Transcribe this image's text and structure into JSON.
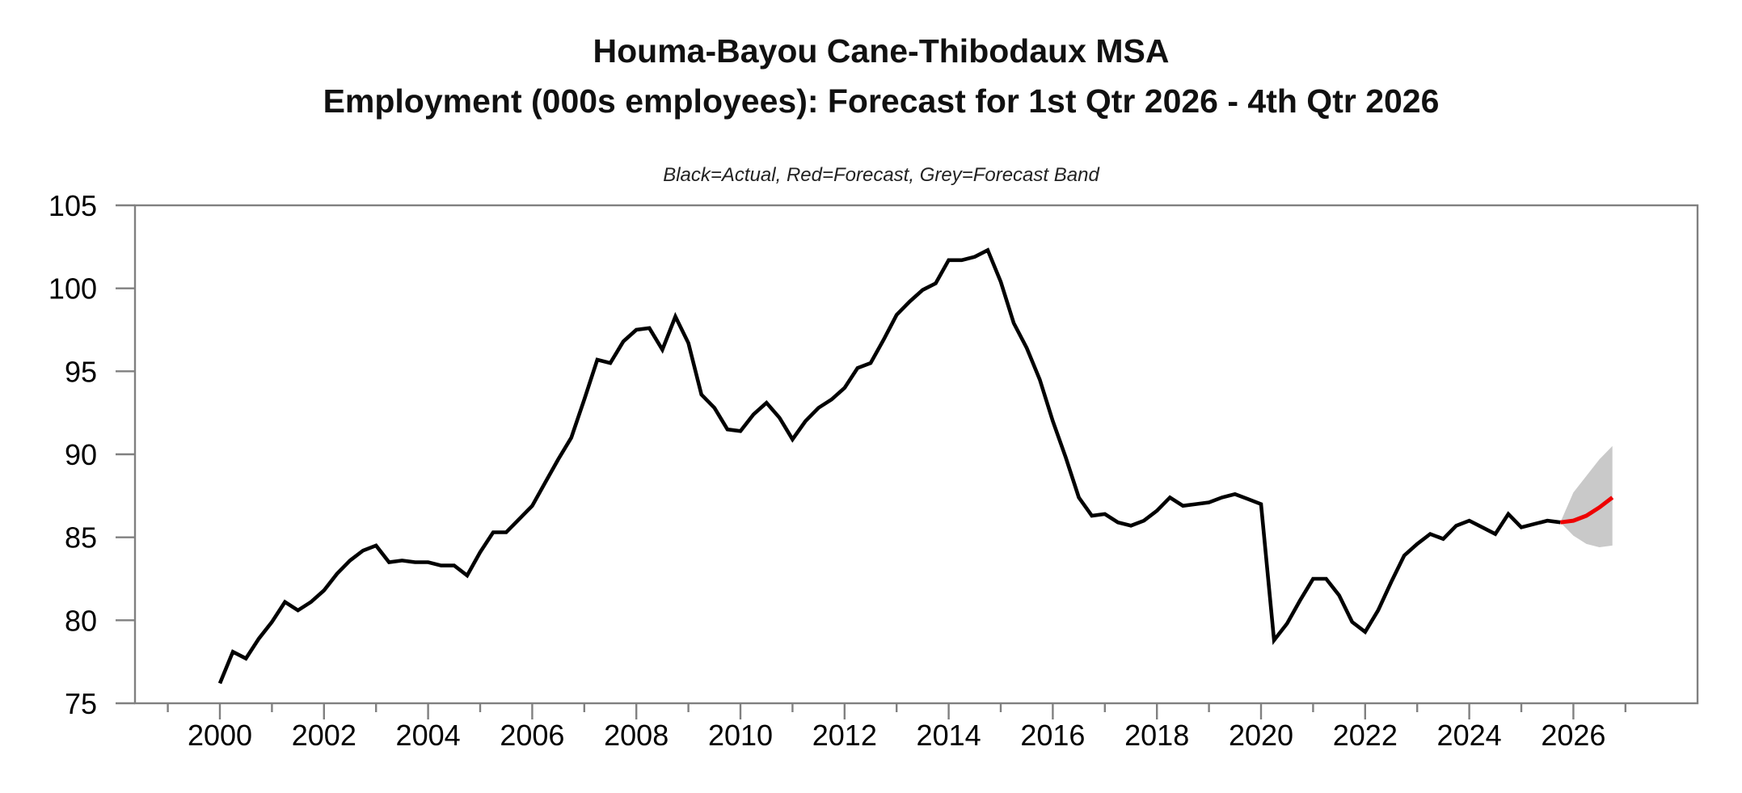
{
  "title": {
    "line1": "Houma-Bayou Cane-Thibodaux MSA",
    "line2": "Employment (000s employees): Forecast for 1st Qtr 2026 - 4th Qtr 2026"
  },
  "subtitle": "Black=Actual, Red=Forecast, Grey=Forecast Band",
  "chart_data": {
    "type": "line",
    "title": "Houma-Bayou Cane-Thibodaux MSA Employment (000s employees): Forecast for 1st Qtr 2026 - 4th Qtr 2026",
    "legend_note": "Black=Actual, Red=Forecast, Grey=Forecast Band",
    "ylabel": "",
    "xlabel": "",
    "ylim": [
      75,
      105
    ],
    "y_ticks": [
      75,
      80,
      85,
      90,
      95,
      100,
      105
    ],
    "x_major_tick_years": [
      2000,
      2002,
      2004,
      2006,
      2008,
      2010,
      2012,
      2014,
      2016,
      2018,
      2020,
      2022,
      2024,
      2026
    ],
    "x_minor_tick_years": [
      1999,
      2001,
      2003,
      2005,
      2007,
      2009,
      2011,
      2013,
      2015,
      2017,
      2019,
      2021,
      2023,
      2025,
      2027
    ],
    "xlim_years": [
      1998.35,
      2028.4
    ],
    "grid": false,
    "colors": {
      "actual": "#000000",
      "forecast": "#ee0000",
      "forecast_band": "#c9c9c9",
      "frame": "#808080"
    },
    "series": [
      {
        "name": "Actual",
        "role": "actual",
        "frequency": "quarterly",
        "start": "2000Q1",
        "end": "2025Q4",
        "values": [
          76.2,
          78.1,
          77.7,
          78.9,
          79.9,
          81.1,
          80.6,
          81.1,
          81.8,
          82.8,
          83.6,
          84.2,
          84.5,
          83.5,
          83.6,
          83.5,
          83.5,
          83.3,
          83.3,
          82.7,
          84.1,
          85.3,
          85.3,
          86.1,
          86.9,
          88.3,
          89.7,
          91.0,
          93.3,
          95.7,
          95.5,
          96.8,
          97.5,
          97.6,
          96.3,
          98.3,
          96.7,
          93.6,
          92.8,
          91.5,
          91.4,
          92.4,
          93.1,
          92.2,
          90.9,
          92.0,
          92.8,
          93.3,
          94.0,
          95.2,
          95.5,
          96.9,
          98.4,
          99.2,
          99.9,
          100.3,
          101.7,
          101.7,
          101.9,
          102.3,
          100.4,
          97.9,
          96.4,
          94.5,
          92.0,
          89.8,
          87.4,
          86.3,
          86.4,
          85.9,
          85.7,
          86.0,
          86.6,
          87.4,
          86.9,
          87.0,
          87.1,
          87.4,
          87.6,
          87.3,
          87.0,
          78.8,
          79.8,
          81.2,
          82.5,
          82.5,
          81.5,
          79.9,
          79.3,
          80.6,
          82.3,
          83.9,
          84.6,
          85.2,
          84.9,
          85.7,
          86.0,
          85.6,
          85.2,
          86.4,
          85.6,
          85.8,
          86.0,
          85.9
        ]
      },
      {
        "name": "Forecast",
        "role": "forecast",
        "frequency": "quarterly",
        "start": "2025Q4",
        "end": "2026Q4",
        "values": [
          85.9,
          86.0,
          86.3,
          86.8,
          87.4
        ]
      },
      {
        "name": "Forecast Band",
        "role": "forecast_band",
        "frequency": "quarterly",
        "start": "2025Q4",
        "end": "2026Q4",
        "upper": [
          85.9,
          87.7,
          88.7,
          89.7,
          90.5
        ],
        "lower": [
          85.9,
          85.1,
          84.6,
          84.4,
          84.5
        ]
      }
    ]
  }
}
